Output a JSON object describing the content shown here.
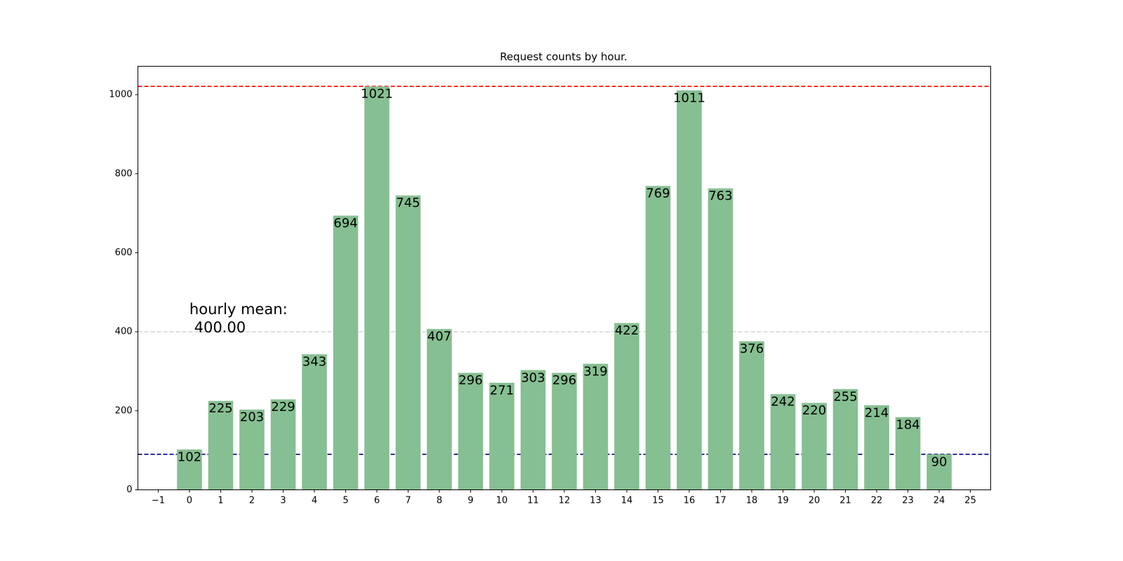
{
  "chart_data": {
    "type": "bar",
    "title": "Request counts by hour.",
    "xlabel": "",
    "ylabel": "",
    "categories": [
      0,
      1,
      2,
      3,
      4,
      5,
      6,
      7,
      8,
      9,
      10,
      11,
      12,
      13,
      14,
      15,
      16,
      17,
      18,
      19,
      20,
      21,
      22,
      23,
      24
    ],
    "values": [
      102,
      225,
      203,
      229,
      343,
      694,
      1021,
      745,
      407,
      296,
      271,
      303,
      296,
      319,
      422,
      769,
      1011,
      763,
      376,
      242,
      220,
      255,
      214,
      184,
      90
    ],
    "xlim": [
      -1.65,
      25.65
    ],
    "ylim": [
      0,
      1072
    ],
    "xticks": [
      "−1",
      "0",
      "1",
      "2",
      "3",
      "4",
      "5",
      "6",
      "7",
      "8",
      "9",
      "10",
      "11",
      "12",
      "13",
      "14",
      "15",
      "16",
      "17",
      "18",
      "19",
      "20",
      "21",
      "22",
      "23",
      "24",
      "25"
    ],
    "yticks": [
      0,
      200,
      400,
      600,
      800,
      1000
    ],
    "grid": false,
    "bar_color": "#86bf91",
    "reference_lines": [
      {
        "value": 1021,
        "color": "#ff0000"
      },
      {
        "value": 400,
        "color": "#d3d3d3"
      },
      {
        "value": 90,
        "color": "#00008b"
      }
    ],
    "annotation": {
      "line1": "hourly mean:",
      "line2": " 400.00",
      "x": 0,
      "y": 400
    }
  }
}
